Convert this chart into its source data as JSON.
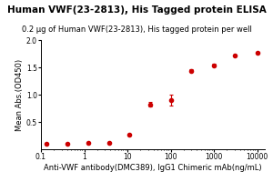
{
  "title": "Human VWF(23-2813), His Tagged protein ELISA",
  "subtitle": "0.2 μg of Human VWF(23-2813), His tagged protein per well",
  "xlabel": "Anti-VWF antibody(DMC389), IgG1 Chimeric mAb(ng/mL)",
  "ylabel": "Mean Abs.(OD450)",
  "x_data": [
    0.137,
    0.41,
    1.23,
    3.7,
    11.1,
    33.3,
    100,
    300,
    1000,
    3000,
    10000
  ],
  "y_data": [
    0.105,
    0.108,
    0.12,
    0.12,
    0.27,
    0.82,
    0.9,
    1.44,
    1.54,
    1.72,
    1.76
  ],
  "y_err": [
    0.005,
    0.005,
    0.02,
    0.01,
    0.02,
    0.04,
    0.1,
    0.03,
    0.02,
    0.01,
    0.01
  ],
  "dot_color": "#CC0000",
  "line_color": "#CC0000",
  "ylim": [
    0.0,
    2.0
  ],
  "yticks": [
    0.5,
    1.0,
    1.5,
    2.0
  ],
  "background_color": "#ffffff",
  "title_fontsize": 7.5,
  "subtitle_fontsize": 6,
  "axis_fontsize": 6,
  "tick_fontsize": 5.5
}
